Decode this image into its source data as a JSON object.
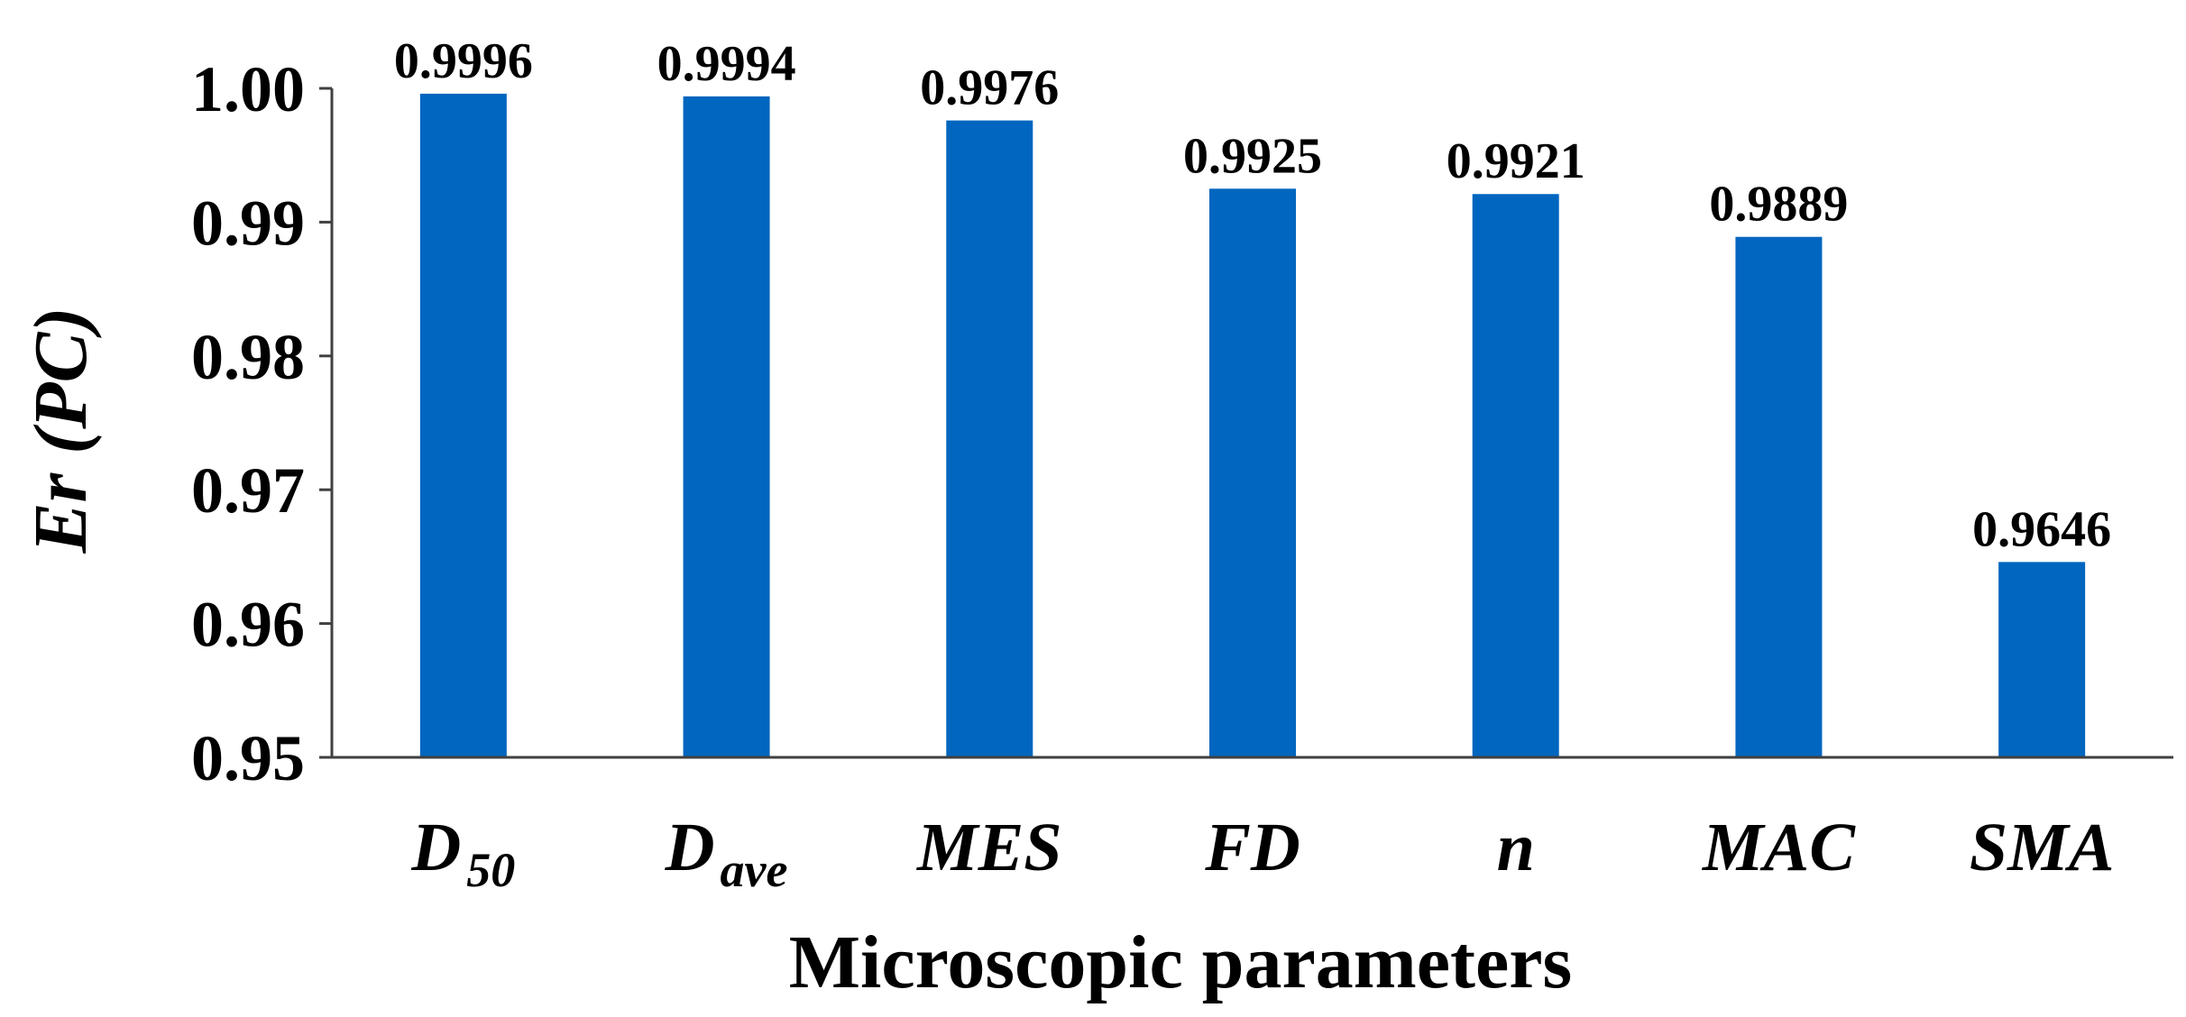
{
  "chart_data": {
    "type": "bar",
    "categories": [
      {
        "main": "D",
        "sub": "50"
      },
      {
        "main": "D",
        "sub": "ave"
      },
      {
        "main": "MES",
        "sub": ""
      },
      {
        "main": "FD",
        "sub": ""
      },
      {
        "main": "n",
        "sub": ""
      },
      {
        "main": "MAC",
        "sub": ""
      },
      {
        "main": "SMA",
        "sub": ""
      }
    ],
    "values": [
      0.9996,
      0.9994,
      0.9976,
      0.9925,
      0.9921,
      0.9889,
      0.9646
    ],
    "data_labels": [
      "0.9996",
      "0.9994",
      "0.9976",
      "0.9925",
      "0.9921",
      "0.9889",
      "0.9646"
    ],
    "title": "",
    "xlabel": "Microscopic parameters",
    "ylabel": "Er (PC)",
    "ylim": [
      0.95,
      1.0
    ],
    "yticks": [
      0.95,
      0.96,
      0.97,
      0.98,
      0.99,
      1.0
    ],
    "ytick_labels": [
      "0.95",
      "0.96",
      "0.97",
      "0.98",
      "0.99",
      "1.00"
    ],
    "bar_color": "#0066BF",
    "grid": false,
    "legend": "none"
  }
}
